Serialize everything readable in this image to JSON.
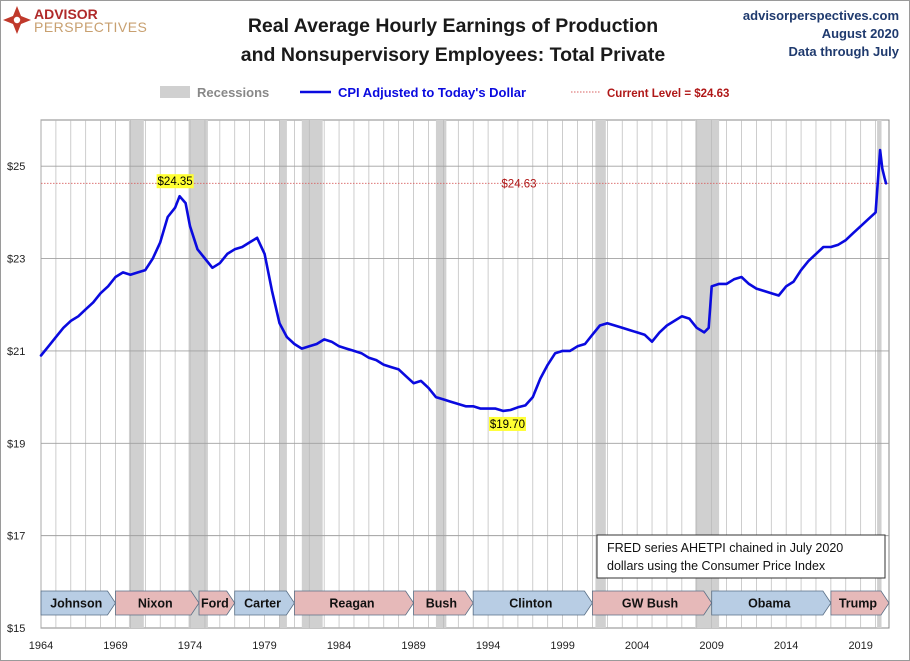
{
  "header": {
    "logo_line1": "ADVISOR",
    "logo_line2": "PERSPECTIVES",
    "source_site": "advisorperspectives.com",
    "source_date": "August 2020",
    "source_range": "Data through July"
  },
  "legend": {
    "recessions": "Recessions",
    "series": "CPI Adjusted to Today's Dollar",
    "current": "Current Level = $24.63"
  },
  "note": {
    "line1": "FRED series AHETPI chained in July 2020",
    "line2": "dollars using the Consumer Price Index"
  },
  "colors": {
    "series": "#0a0adf",
    "recession": "#d0d0d0",
    "current_line": "#d86060",
    "current_text": "#b01818",
    "annotation_bg": "#ffff33",
    "blue_box": "#b8cde4",
    "red_box": "#e6b9b9"
  },
  "chart_data": {
    "type": "line",
    "title": "Real Average Hourly Earnings of Production and Nonsupervisory Employees: Total Private",
    "title_lines": [
      "Real Average Hourly Earnings of Production",
      "and Nonsupervisory Employees: Total Private"
    ],
    "xlim": [
      1964,
      2020.9
    ],
    "ylim": [
      15,
      26
    ],
    "x_ticks": [
      1964,
      1969,
      1974,
      1979,
      1984,
      1989,
      1994,
      1999,
      2004,
      2009,
      2014,
      2019
    ],
    "y_ticks": [
      15,
      17,
      19,
      21,
      23,
      25
    ],
    "y_tick_labels": [
      "$15",
      "$17",
      "$19",
      "$21",
      "$23",
      "$25"
    ],
    "grid": true,
    "current_level": 24.63,
    "current_label": "$24.63",
    "recessions": [
      [
        1969.9,
        1970.9
      ],
      [
        1973.9,
        1975.2
      ],
      [
        1980.0,
        1980.5
      ],
      [
        1981.5,
        1982.9
      ],
      [
        1990.5,
        1991.2
      ],
      [
        2001.2,
        2001.9
      ],
      [
        2007.9,
        2009.5
      ],
      [
        2020.1,
        2020.4
      ]
    ],
    "annotations": [
      {
        "label": "$24.35",
        "x": 1973.0,
        "y": 24.35
      },
      {
        "label": "$19.70",
        "x": 1995.3,
        "y": 19.7
      }
    ],
    "presidents": [
      {
        "name": "Johnson",
        "start": 1964.0,
        "end": 1969.0,
        "party": "D"
      },
      {
        "name": "Nixon",
        "start": 1969.0,
        "end": 1974.6,
        "party": "R"
      },
      {
        "name": "Ford",
        "start": 1974.6,
        "end": 1977.0,
        "party": "R"
      },
      {
        "name": "Carter",
        "start": 1977.0,
        "end": 1981.0,
        "party": "D"
      },
      {
        "name": "Reagan",
        "start": 1981.0,
        "end": 1989.0,
        "party": "R"
      },
      {
        "name": "Bush",
        "start": 1989.0,
        "end": 1993.0,
        "party": "R"
      },
      {
        "name": "Clinton",
        "start": 1993.0,
        "end": 2001.0,
        "party": "D"
      },
      {
        "name": "GW Bush",
        "start": 2001.0,
        "end": 2009.0,
        "party": "R"
      },
      {
        "name": "Obama",
        "start": 2009.0,
        "end": 2017.0,
        "party": "D"
      },
      {
        "name": "Trump",
        "start": 2017.0,
        "end": 2020.9,
        "party": "R"
      }
    ],
    "series": [
      {
        "name": "CPI Adjusted to Today's Dollar",
        "x": [
          1964.0,
          1964.5,
          1965.0,
          1965.5,
          1966.0,
          1966.5,
          1967.0,
          1967.5,
          1968.0,
          1968.5,
          1969.0,
          1969.5,
          1970.0,
          1970.5,
          1971.0,
          1971.5,
          1972.0,
          1972.5,
          1973.0,
          1973.3,
          1973.7,
          1974.0,
          1974.5,
          1975.0,
          1975.5,
          1976.0,
          1976.5,
          1977.0,
          1977.5,
          1978.0,
          1978.5,
          1979.0,
          1979.5,
          1980.0,
          1980.5,
          1981.0,
          1981.5,
          1982.0,
          1982.5,
          1983.0,
          1983.5,
          1984.0,
          1984.5,
          1985.0,
          1985.5,
          1986.0,
          1986.5,
          1987.0,
          1987.5,
          1988.0,
          1988.5,
          1989.0,
          1989.5,
          1990.0,
          1990.5,
          1991.0,
          1991.5,
          1992.0,
          1992.5,
          1993.0,
          1993.5,
          1994.0,
          1994.5,
          1995.0,
          1995.5,
          1996.0,
          1996.5,
          1997.0,
          1997.5,
          1998.0,
          1998.5,
          1999.0,
          1999.5,
          2000.0,
          2000.5,
          2001.0,
          2001.5,
          2002.0,
          2002.5,
          2003.0,
          2003.5,
          2004.0,
          2004.5,
          2005.0,
          2005.5,
          2006.0,
          2006.5,
          2007.0,
          2007.5,
          2008.0,
          2008.5,
          2008.8,
          2009.0,
          2009.5,
          2010.0,
          2010.5,
          2011.0,
          2011.5,
          2012.0,
          2012.5,
          2013.0,
          2013.5,
          2014.0,
          2014.5,
          2015.0,
          2015.5,
          2016.0,
          2016.5,
          2017.0,
          2017.5,
          2018.0,
          2018.5,
          2019.0,
          2019.5,
          2020.0,
          2020.2,
          2020.3,
          2020.45,
          2020.6,
          2020.7
        ],
        "values": [
          20.9,
          21.1,
          21.3,
          21.5,
          21.65,
          21.75,
          21.9,
          22.05,
          22.25,
          22.4,
          22.6,
          22.7,
          22.65,
          22.7,
          22.75,
          23.0,
          23.35,
          23.9,
          24.1,
          24.35,
          24.2,
          23.7,
          23.2,
          23.0,
          22.8,
          22.9,
          23.1,
          23.2,
          23.25,
          23.35,
          23.45,
          23.1,
          22.3,
          21.6,
          21.3,
          21.15,
          21.05,
          21.1,
          21.15,
          21.25,
          21.2,
          21.1,
          21.05,
          21.0,
          20.95,
          20.85,
          20.8,
          20.7,
          20.65,
          20.6,
          20.45,
          20.3,
          20.35,
          20.2,
          20.0,
          19.95,
          19.9,
          19.85,
          19.8,
          19.8,
          19.75,
          19.75,
          19.75,
          19.7,
          19.72,
          19.78,
          19.82,
          20.0,
          20.4,
          20.7,
          20.95,
          21.0,
          21.0,
          21.1,
          21.15,
          21.35,
          21.55,
          21.6,
          21.55,
          21.5,
          21.45,
          21.4,
          21.35,
          21.2,
          21.4,
          21.55,
          21.65,
          21.75,
          21.7,
          21.5,
          21.4,
          21.5,
          22.4,
          22.45,
          22.45,
          22.55,
          22.6,
          22.45,
          22.35,
          22.3,
          22.25,
          22.2,
          22.4,
          22.5,
          22.75,
          22.95,
          23.1,
          23.25,
          23.25,
          23.3,
          23.4,
          23.55,
          23.7,
          23.85,
          24.0,
          24.9,
          25.35,
          24.95,
          24.75,
          24.63
        ]
      }
    ]
  }
}
